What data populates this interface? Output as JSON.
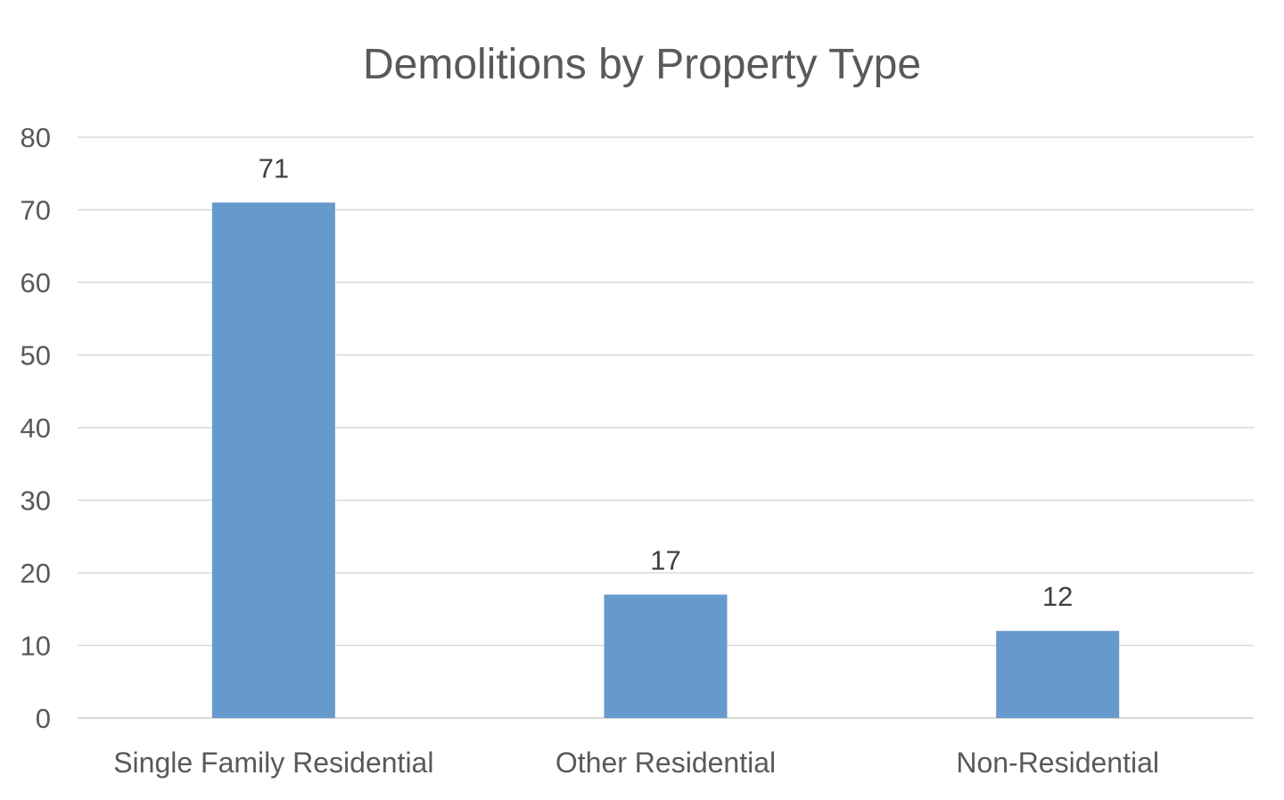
{
  "chart_data": {
    "type": "bar",
    "title": "Demolitions by Property Type",
    "categories": [
      "Single Family Residential",
      "Other Residential",
      "Non-Residential"
    ],
    "values": [
      71,
      17,
      12
    ],
    "data_labels": [
      "71",
      "17",
      "12"
    ],
    "xlabel": "",
    "ylabel": "",
    "ylim": [
      0,
      80
    ],
    "y_ticks": [
      0,
      10,
      20,
      30,
      40,
      50,
      60,
      70,
      80
    ],
    "grid": true,
    "legend": "none",
    "bar_color": "#6699cc"
  }
}
